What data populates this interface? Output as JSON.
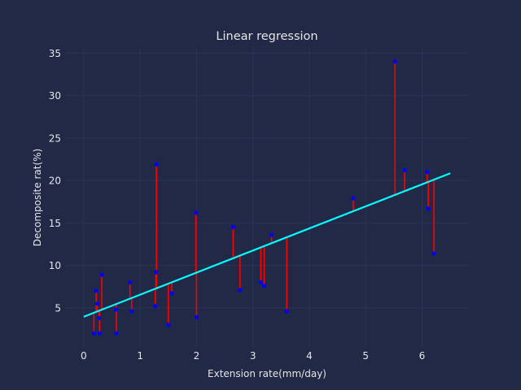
{
  "colors": {
    "background": "#212946",
    "grid": "#2A3459",
    "text": "#e6e6e6",
    "points": "#0000ff",
    "residuals": "#ff0000",
    "fit_line": "#00ffff"
  },
  "chart_data": {
    "type": "scatter",
    "title": "Linear regression",
    "xlabel": "Extension rate(mm/day)",
    "ylabel": "Decomposite rat(%)",
    "xlim": [
      -0.33,
      6.83
    ],
    "ylim": [
      0.3,
      35.7
    ],
    "xticks": [
      0,
      1,
      2,
      3,
      4,
      5,
      6
    ],
    "yticks": [
      5,
      10,
      15,
      20,
      25,
      30,
      35
    ],
    "grid": true,
    "points": [
      {
        "x": 0.18,
        "y": 2.0
      },
      {
        "x": 0.22,
        "y": 7.0
      },
      {
        "x": 0.24,
        "y": 5.5
      },
      {
        "x": 0.27,
        "y": 3.8
      },
      {
        "x": 0.28,
        "y": 2.0
      },
      {
        "x": 0.32,
        "y": 8.9
      },
      {
        "x": 0.57,
        "y": 4.8
      },
      {
        "x": 0.58,
        "y": 2.0
      },
      {
        "x": 0.82,
        "y": 8.0
      },
      {
        "x": 0.85,
        "y": 4.6
      },
      {
        "x": 1.27,
        "y": 5.2
      },
      {
        "x": 1.28,
        "y": 9.2
      },
      {
        "x": 1.29,
        "y": 21.9
      },
      {
        "x": 1.5,
        "y": 3.0
      },
      {
        "x": 1.56,
        "y": 6.7
      },
      {
        "x": 1.99,
        "y": 16.2
      },
      {
        "x": 2.0,
        "y": 3.9
      },
      {
        "x": 2.65,
        "y": 14.5
      },
      {
        "x": 2.77,
        "y": 7.1
      },
      {
        "x": 3.14,
        "y": 8.0
      },
      {
        "x": 3.2,
        "y": 7.6
      },
      {
        "x": 3.33,
        "y": 13.6
      },
      {
        "x": 3.6,
        "y": 4.6
      },
      {
        "x": 4.78,
        "y": 17.9
      },
      {
        "x": 5.52,
        "y": 34.0
      },
      {
        "x": 5.69,
        "y": 21.2
      },
      {
        "x": 6.09,
        "y": 21.0
      },
      {
        "x": 6.11,
        "y": 16.7
      },
      {
        "x": 6.21,
        "y": 11.4
      }
    ],
    "fit_line": {
      "x": [
        0.0,
        6.5
      ],
      "y": [
        3.95,
        20.85
      ]
    }
  }
}
